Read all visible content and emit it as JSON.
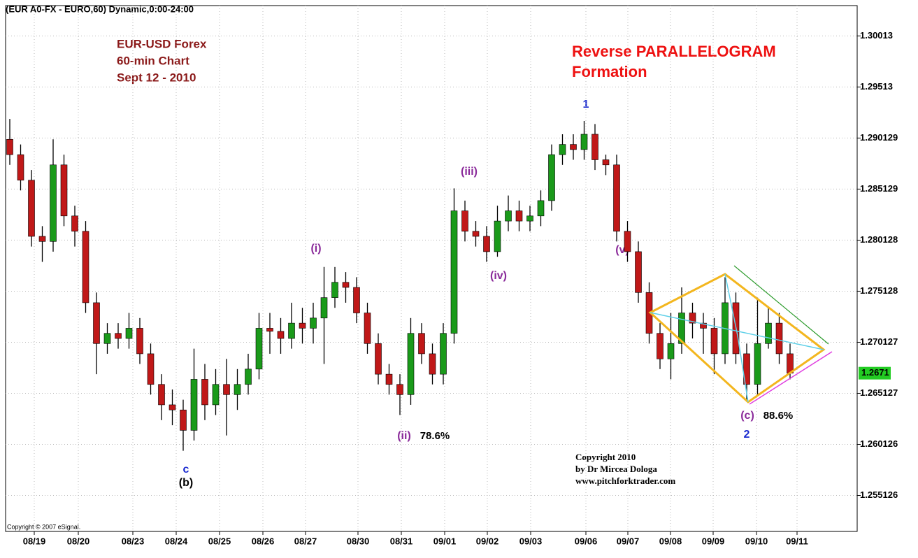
{
  "chart_data": {
    "type": "candlestick",
    "header": "(EUR A0-FX - EURO,60) Dynamic,0:00-24:00",
    "title_lines": [
      "EUR-USD Forex",
      "60-min Chart",
      "Sept 12 - 2010"
    ],
    "headline_lines": [
      "Reverse PARALLELOGRAM",
      "Formation"
    ],
    "copyright_lines": [
      "Copyright 2010",
      "by Dr Mircea Dologa",
      "www.pitchforktrader.com"
    ],
    "source_note": "Copyright © 2007 eSignal.",
    "wave_labels": [
      "1",
      "(iii)",
      "(i)",
      "(iv)",
      "(ii)",
      "78.6%",
      "c",
      "(b)",
      "(c)",
      "88.6%",
      "2",
      "(v)"
    ],
    "last_price": 1.2671,
    "categories": [
      "08/19",
      "08/20",
      "08/23",
      "08/24",
      "08/25",
      "08/26",
      "08/27",
      "08/30",
      "08/31",
      "09/01",
      "09/02",
      "09/03",
      "09/06",
      "09/07",
      "09/08",
      "09/09",
      "09/10",
      "09/11"
    ],
    "open": [
      1.29,
      1.2885,
      1.286,
      1.2805,
      1.28,
      1.2875,
      1.2825,
      1.281,
      1.274,
      1.27,
      1.271,
      1.2705,
      1.2715,
      1.269,
      1.266,
      1.264,
      1.2635,
      1.2615,
      1.2665,
      1.264,
      1.266,
      1.265,
      1.266,
      1.2675,
      1.2715,
      1.2712,
      1.2705,
      1.272,
      1.2715,
      1.2725,
      1.2745,
      1.276,
      1.2755,
      1.273,
      1.27,
      1.267,
      1.266,
      1.265,
      1.271,
      1.269,
      1.267,
      1.271,
      1.283,
      1.281,
      1.2805,
      1.279,
      1.282,
      1.283,
      1.282,
      1.2825,
      1.284,
      1.2885,
      1.2895,
      1.289,
      1.2905,
      1.288,
      1.2875,
      1.281,
      1.279,
      1.275,
      1.271,
      1.2685,
      1.27,
      1.273,
      1.272,
      1.2715,
      1.269,
      1.274,
      1.269,
      1.266,
      1.27,
      1.272,
      1.269
    ],
    "high": [
      1.292,
      1.2895,
      1.287,
      1.2815,
      1.29,
      1.2885,
      1.2835,
      1.282,
      1.275,
      1.272,
      1.272,
      1.273,
      1.2725,
      1.27,
      1.267,
      1.2655,
      1.2645,
      1.2695,
      1.268,
      1.2675,
      1.2685,
      1.2675,
      1.269,
      1.273,
      1.273,
      1.2725,
      1.274,
      1.2735,
      1.274,
      1.2775,
      1.2775,
      1.277,
      1.2765,
      1.274,
      1.271,
      1.268,
      1.267,
      1.2725,
      1.272,
      1.27,
      1.272,
      1.2852,
      1.284,
      1.282,
      1.2815,
      1.2835,
      1.2845,
      1.284,
      1.2835,
      1.285,
      1.2895,
      1.2905,
      1.2905,
      1.2918,
      1.2915,
      1.2885,
      1.2885,
      1.282,
      1.28,
      1.276,
      1.272,
      1.273,
      1.2755,
      1.274,
      1.273,
      1.2725,
      1.2765,
      1.275,
      1.27,
      1.2745,
      1.2735,
      1.273,
      1.27
    ],
    "low": [
      1.2875,
      1.285,
      1.2795,
      1.278,
      1.279,
      1.2815,
      1.2795,
      1.273,
      1.267,
      1.269,
      1.2695,
      1.2695,
      1.268,
      1.265,
      1.2625,
      1.262,
      1.2595,
      1.2605,
      1.2625,
      1.263,
      1.261,
      1.2635,
      1.265,
      1.2665,
      1.269,
      1.269,
      1.2695,
      1.27,
      1.27,
      1.268,
      1.2735,
      1.274,
      1.272,
      1.269,
      1.266,
      1.265,
      1.263,
      1.264,
      1.268,
      1.266,
      1.266,
      1.27,
      1.28,
      1.2795,
      1.278,
      1.2785,
      1.281,
      1.281,
      1.281,
      1.2815,
      1.283,
      1.2875,
      1.288,
      1.288,
      1.287,
      1.2865,
      1.28,
      1.278,
      1.274,
      1.27,
      1.2675,
      1.2665,
      1.269,
      1.2705,
      1.269,
      1.267,
      1.268,
      1.268,
      1.2645,
      1.265,
      1.2695,
      1.268,
      1.2665
    ],
    "close": [
      1.2885,
      1.286,
      1.2805,
      1.28,
      1.2875,
      1.2825,
      1.281,
      1.274,
      1.27,
      1.271,
      1.2705,
      1.2715,
      1.269,
      1.266,
      1.264,
      1.2635,
      1.2615,
      1.2665,
      1.264,
      1.266,
      1.265,
      1.266,
      1.2675,
      1.2715,
      1.2712,
      1.2705,
      1.272,
      1.2715,
      1.2725,
      1.2745,
      1.276,
      1.2755,
      1.273,
      1.27,
      1.267,
      1.266,
      1.265,
      1.271,
      1.269,
      1.267,
      1.271,
      1.283,
      1.281,
      1.2805,
      1.279,
      1.282,
      1.283,
      1.282,
      1.2825,
      1.284,
      1.2885,
      1.2895,
      1.289,
      1.2905,
      1.288,
      1.2875,
      1.281,
      1.279,
      1.275,
      1.271,
      1.2685,
      1.27,
      1.273,
      1.272,
      1.2715,
      1.269,
      1.274,
      1.269,
      1.266,
      1.27,
      1.272,
      1.269,
      1.2671
    ],
    "up_color": "#1a9a1a",
    "down_color": "#c01818",
    "wick_color": "#000000",
    "ylim": [
      1.2516,
      1.3031
    ],
    "yticks": [
      1.30013,
      1.29513,
      1.290129,
      1.285129,
      1.280128,
      1.275128,
      1.270127,
      1.265127,
      1.260126,
      1.255126
    ],
    "grid": true
  }
}
